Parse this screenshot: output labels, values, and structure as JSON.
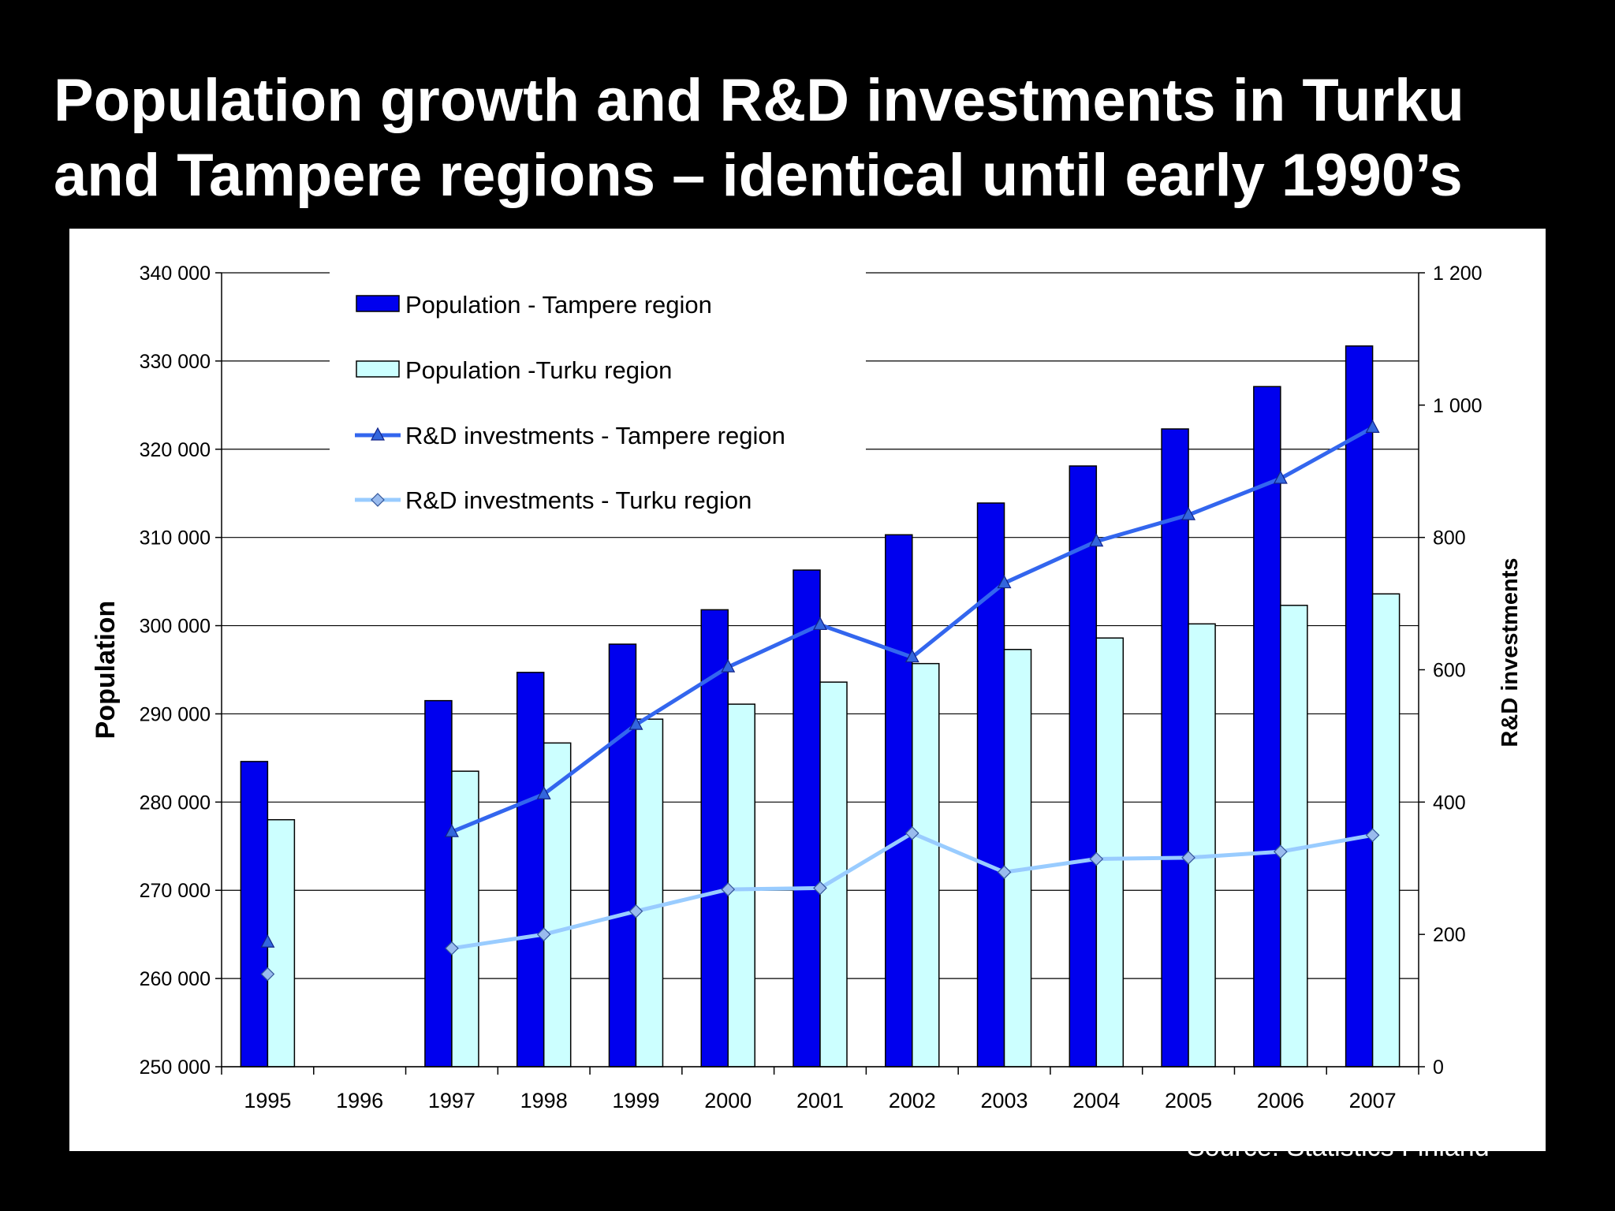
{
  "slide": {
    "title_line1": "Population growth and R&D investments in Turku",
    "title_line2": "and Tampere regions – identical until early 1990’s",
    "source": "Source: Statistics Finland"
  },
  "chart_data": {
    "type": "bar",
    "categories": [
      "1995",
      "1996",
      "1997",
      "1998",
      "1999",
      "2000",
      "2001",
      "2002",
      "2003",
      "2004",
      "2005",
      "2006",
      "2007"
    ],
    "series": [
      {
        "name": "Population - Tampere region",
        "kind": "bar",
        "axis": "left",
        "color": "#0000ee",
        "values": [
          284600,
          null,
          291500,
          294700,
          297900,
          301800,
          306300,
          310300,
          313900,
          318100,
          322300,
          327100,
          331700
        ]
      },
      {
        "name": "Population -Turku region",
        "kind": "bar",
        "axis": "left",
        "color": "#ccffff",
        "values": [
          278000,
          null,
          283500,
          286700,
          289400,
          291100,
          293600,
          295700,
          297300,
          298600,
          300200,
          302300,
          303600
        ]
      },
      {
        "name": "R&D investments - Tampere region",
        "kind": "line",
        "axis": "right",
        "color": "#3366ee",
        "marker": "triangle",
        "values": [
          188,
          null,
          355,
          412,
          517,
          604,
          668,
          619,
          731,
          794,
          834,
          889,
          966
        ]
      },
      {
        "name": "R&D investments - Turku region",
        "kind": "line",
        "axis": "right",
        "color": "#99ccff",
        "marker": "diamond",
        "values": [
          140,
          null,
          179,
          200,
          235,
          268,
          270,
          353,
          294,
          314,
          316,
          325,
          350
        ]
      }
    ],
    "ylabel": "Population",
    "y2label": "R&D investments",
    "ylim": [
      250000,
      340000
    ],
    "y2lim": [
      0,
      1200
    ],
    "yticks": [
      "250 000",
      "260 000",
      "270 000",
      "280 000",
      "290 000",
      "300 000",
      "310 000",
      "320 000",
      "330 000",
      "340 000"
    ],
    "y2ticks": [
      "0",
      "200",
      "400",
      "600",
      "800",
      "1 000",
      "1 200"
    ],
    "grid": true,
    "legend_position": "top-left"
  }
}
